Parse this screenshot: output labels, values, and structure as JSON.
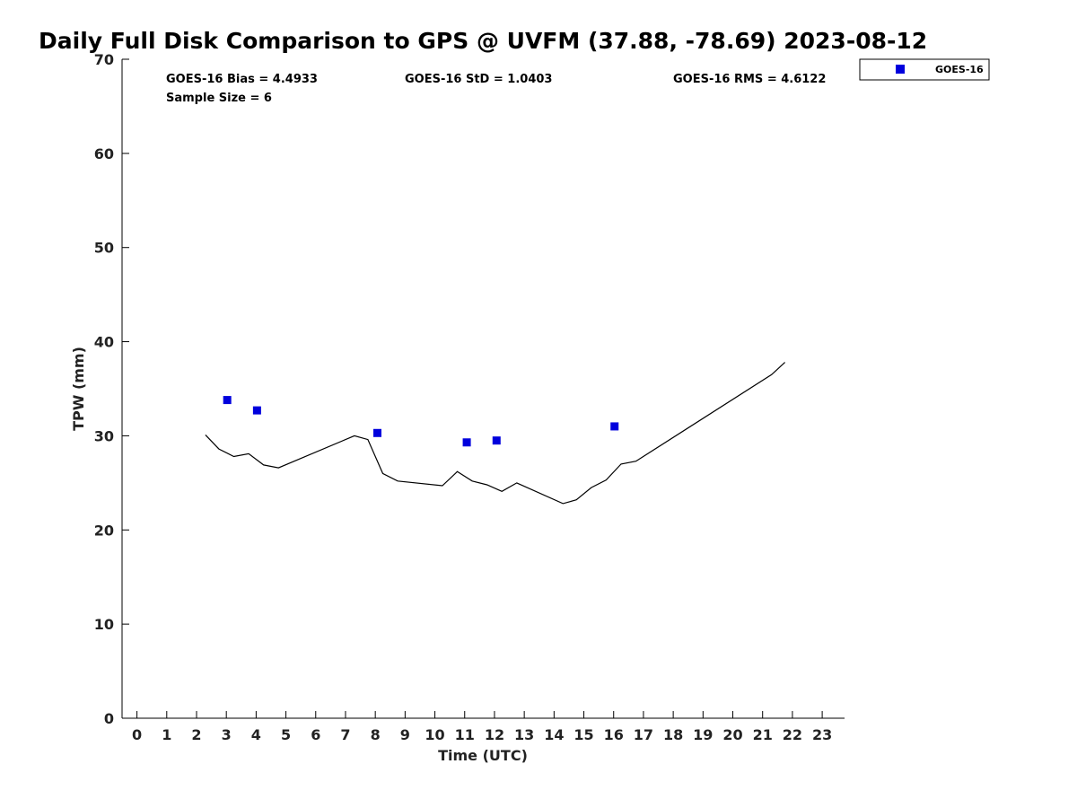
{
  "chart_data": {
    "type": "scatter",
    "title": "Daily Full Disk Comparison to GPS @ UVFM (37.88, -78.69) 2023-08-12",
    "xlabel": "Time (UTC)",
    "ylabel": "TPW (mm)",
    "xlim": [
      -0.5,
      23.75
    ],
    "ylim": [
      0,
      70
    ],
    "x_ticks": [
      0,
      1,
      2,
      3,
      4,
      5,
      6,
      7,
      8,
      9,
      10,
      11,
      12,
      13,
      14,
      15,
      16,
      17,
      18,
      19,
      20,
      21,
      22,
      23
    ],
    "y_ticks": [
      0,
      10,
      20,
      30,
      40,
      50,
      60,
      70
    ],
    "grid": false,
    "legend_position": "top-right",
    "stats": {
      "bias": "GOES-16 Bias = 4.4933",
      "std": "GOES-16 StD = 1.0403",
      "rms": "GOES-16 RMS = 4.6122",
      "sample_size": "Sample Size = 6"
    },
    "series": [
      {
        "name": "GOES-16",
        "kind": "scatter",
        "marker": "square",
        "color": "#0000dd",
        "x": [
          3.03,
          4.03,
          8.07,
          11.07,
          12.07,
          16.03
        ],
        "y": [
          33.8,
          32.7,
          30.3,
          29.3,
          29.5,
          31.0
        ]
      },
      {
        "kind": "line",
        "color": "#000000",
        "x": [
          2.3,
          2.75,
          3.25,
          3.75,
          4.25,
          4.75,
          7.3,
          7.75,
          8.25,
          8.75,
          10.25,
          10.75,
          11.25,
          11.75,
          12.25,
          12.75,
          14.3,
          14.75,
          15.25,
          15.75,
          16.25,
          16.75,
          21.3,
          21.75
        ],
        "y": [
          30.1,
          28.6,
          27.8,
          28.1,
          26.9,
          26.6,
          30.0,
          29.6,
          26.0,
          25.2,
          24.7,
          26.2,
          25.2,
          24.8,
          24.1,
          25.0,
          22.8,
          23.2,
          24.5,
          25.3,
          27.0,
          27.3,
          36.5,
          37.8
        ]
      }
    ]
  }
}
